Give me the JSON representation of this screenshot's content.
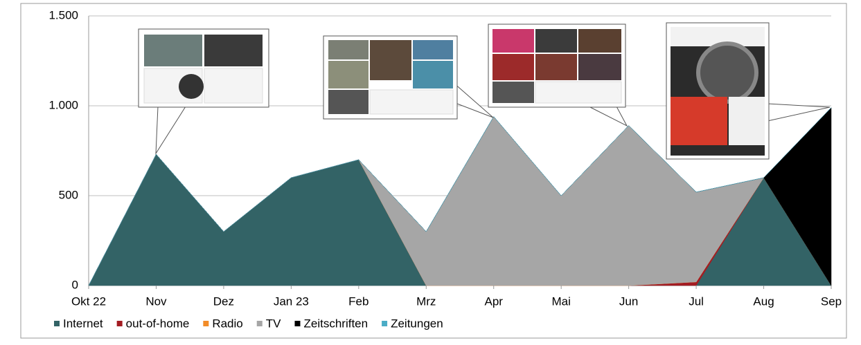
{
  "chart_data": {
    "type": "stacked-area",
    "categories": [
      "Okt 22",
      "Nov",
      "Dez",
      "Jan 23",
      "Feb",
      "Mrz",
      "Apr",
      "Mai",
      "Jun",
      "Jul",
      "Aug",
      "Sep"
    ],
    "series": [
      {
        "name": "Internet",
        "color": "#336366",
        "values": [
          0,
          730,
          300,
          600,
          700,
          0,
          0,
          0,
          0,
          0,
          600,
          0
        ]
      },
      {
        "name": "out-of-home",
        "color": "#a31c22",
        "values": [
          0,
          0,
          0,
          0,
          0,
          0,
          0,
          0,
          0,
          20,
          0,
          0
        ]
      },
      {
        "name": "Radio",
        "color": "#f28c28",
        "values": [
          0,
          0,
          0,
          0,
          0,
          0,
          0,
          0,
          0,
          0,
          0,
          0
        ]
      },
      {
        "name": "TV",
        "color": "#a6a6a6",
        "values": [
          0,
          0,
          0,
          0,
          0,
          300,
          940,
          500,
          890,
          500,
          0,
          0
        ]
      },
      {
        "name": "Zeitschriften",
        "color": "#000000",
        "values": [
          0,
          0,
          0,
          0,
          0,
          0,
          0,
          0,
          0,
          0,
          0,
          990
        ]
      },
      {
        "name": "Zeitungen",
        "color": "#4bacc6",
        "values": [
          0,
          0,
          0,
          0,
          0,
          0,
          0,
          0,
          0,
          0,
          0,
          0
        ]
      }
    ],
    "ylim": [
      0,
      1500
    ],
    "yticks": [
      0,
      500,
      {
        "value": 1000,
        "label": "1.000"
      },
      {
        "value": 1500,
        "label": "1.500"
      }
    ],
    "grid": true,
    "legend": "bottom-left"
  }
}
